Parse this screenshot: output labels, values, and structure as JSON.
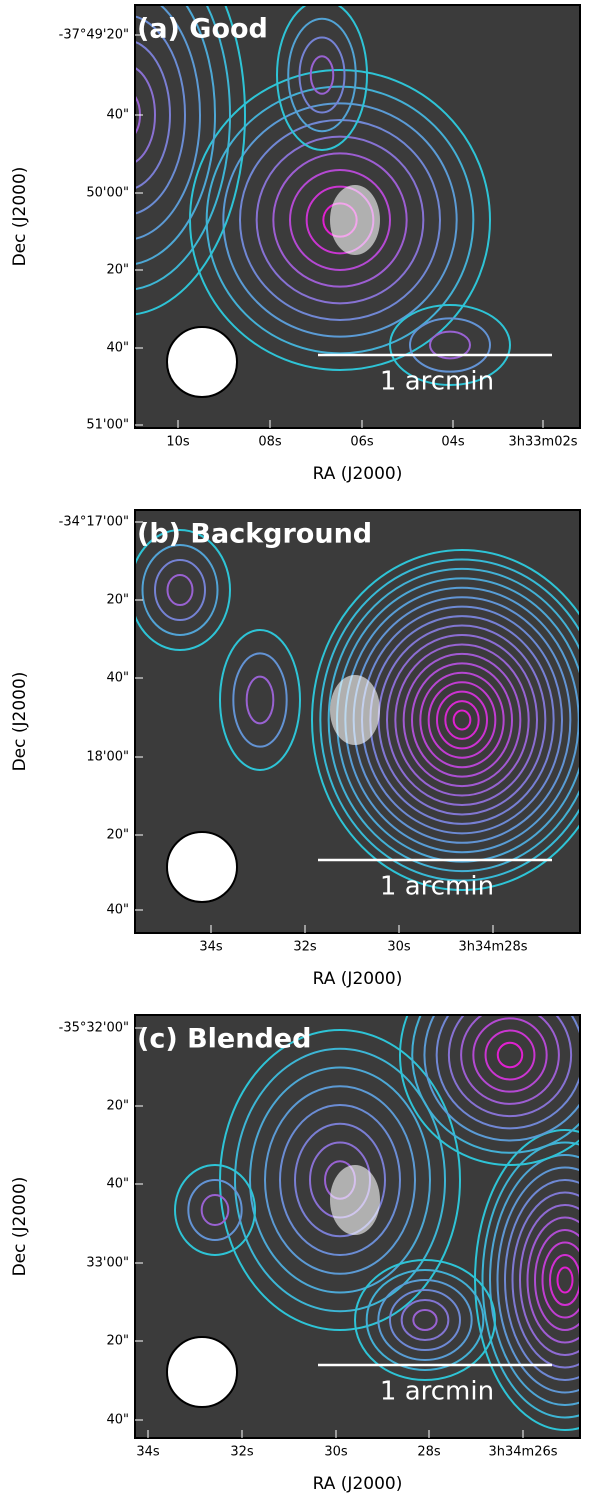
{
  "panels": [
    {
      "title": "(a) Good",
      "x_axis_label": "RA (J2000)",
      "y_axis_label": "Dec (J2000)",
      "x_tick_labels": [
        "10s",
        "08s",
        "06s",
        "04s",
        "3h33m02s"
      ],
      "y_tick_labels": [
        "-37°49'20\"",
        "40\"",
        "50'00\"",
        "20\"",
        "40\"",
        "51'00\""
      ],
      "scale_bar": "1 arcmin"
    },
    {
      "title": "(b) Background",
      "x_axis_label": "RA (J2000)",
      "y_axis_label": "Dec (J2000)",
      "x_tick_labels": [
        "34s",
        "32s",
        "30s",
        "3h34m28s"
      ],
      "y_tick_labels": [
        "-34°17'00\"",
        "20\"",
        "40\"",
        "18'00\"",
        "20\"",
        "40\""
      ],
      "scale_bar": "1 arcmin"
    },
    {
      "title": "(c) Blended",
      "x_axis_label": "RA (J2000)",
      "y_axis_label": "Dec (J2000)",
      "x_tick_labels": [
        "34s",
        "32s",
        "30s",
        "28s",
        "3h34m26s"
      ],
      "y_tick_labels": [
        "-35°32'00\"",
        "20\"",
        "40\"",
        "33'00\"",
        "20\"",
        "40\""
      ],
      "scale_bar": "1 arcmin"
    }
  ]
}
